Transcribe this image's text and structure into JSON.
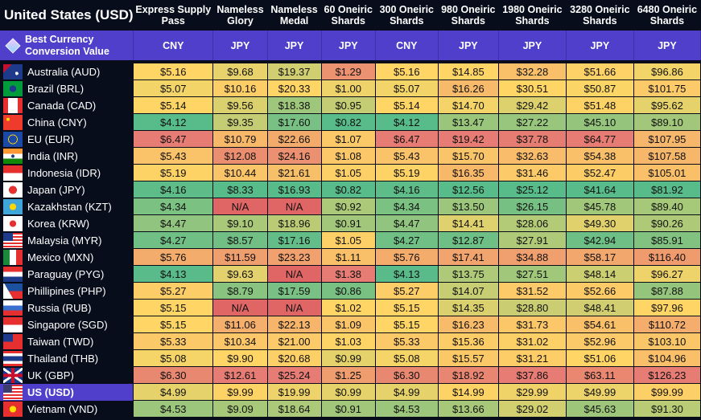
{
  "title": "United States (USD)",
  "columns": [
    "Express Supply\nPass",
    "Nameless\nGlory",
    "Nameless\nMedal",
    "60 Oneiric\nShards",
    "300 Oneiric\nShards",
    "980 Oneiric\nShards",
    "1980 Oneiric\nShards",
    "3280 Oneiric\nShards",
    "6480 Oneiric\nShards"
  ],
  "best": {
    "label": "Best Currency\nConversion Value",
    "icon": "crystal-gem-icon",
    "values": [
      "CNY",
      "JPY",
      "JPY",
      "JPY",
      "CNY",
      "JPY",
      "JPY",
      "JPY",
      "JPY"
    ]
  },
  "colors": {
    "background": "#080d1b",
    "accent": "#4f3fca",
    "scale_low": "#57bb8a",
    "scale_mid": "#ffd666",
    "scale_high": "#e67c73",
    "na": "#e06666"
  },
  "selected_row": "US (USD)",
  "rows": [
    {
      "country": "Australia (AUD)",
      "flag": "flag-australia",
      "values": [
        "$5.16",
        "$9.68",
        "$19.37",
        "$1.29",
        "$5.16",
        "$14.85",
        "$32.28",
        "$51.66",
        "$96.86"
      ]
    },
    {
      "country": "Brazil (BRL)",
      "flag": "flag-brazil",
      "values": [
        "$5.07",
        "$10.16",
        "$20.33",
        "$1.00",
        "$5.07",
        "$16.26",
        "$30.51",
        "$50.87",
        "$101.75"
      ]
    },
    {
      "country": "Canada (CAD)",
      "flag": "flag-canada",
      "values": [
        "$5.14",
        "$9.56",
        "$18.38",
        "$0.95",
        "$5.14",
        "$14.70",
        "$29.42",
        "$51.48",
        "$95.62"
      ]
    },
    {
      "country": "China (CNY)",
      "flag": "flag-china",
      "values": [
        "$4.12",
        "$9.35",
        "$17.60",
        "$0.82",
        "$4.12",
        "$13.47",
        "$27.22",
        "$45.10",
        "$89.10"
      ]
    },
    {
      "country": "EU (EUR)",
      "flag": "flag-eu",
      "values": [
        "$6.47",
        "$10.79",
        "$22.66",
        "$1.07",
        "$6.47",
        "$19.42",
        "$37.78",
        "$64.77",
        "$107.95"
      ]
    },
    {
      "country": "India (INR)",
      "flag": "flag-india",
      "values": [
        "$5.43",
        "$12.08",
        "$24.16",
        "$1.08",
        "$5.43",
        "$15.70",
        "$32.63",
        "$54.38",
        "$107.58"
      ]
    },
    {
      "country": "Indonesia (IDR)",
      "flag": "flag-indonesia",
      "values": [
        "$5.19",
        "$10.44",
        "$21.61",
        "$1.05",
        "$5.19",
        "$16.35",
        "$31.46",
        "$52.47",
        "$105.01"
      ]
    },
    {
      "country": "Japan (JPY)",
      "flag": "flag-japan",
      "values": [
        "$4.16",
        "$8.33",
        "$16.93",
        "$0.82",
        "$4.16",
        "$12.56",
        "$25.12",
        "$41.64",
        "$81.92"
      ]
    },
    {
      "country": "Kazakhstan (KZT)",
      "flag": "flag-kazakhstan",
      "values": [
        "$4.34",
        "N/A",
        "N/A",
        "$0.92",
        "$4.34",
        "$13.50",
        "$26.15",
        "$45.78",
        "$89.40"
      ]
    },
    {
      "country": "Korea (KRW)",
      "flag": "flag-korea",
      "values": [
        "$4.47",
        "$9.10",
        "$18.96",
        "$0.91",
        "$4.47",
        "$14.41",
        "$28.06",
        "$49.30",
        "$90.26"
      ]
    },
    {
      "country": "Malaysia (MYR)",
      "flag": "flag-malaysia",
      "values": [
        "$4.27",
        "$8.57",
        "$17.16",
        "$1.05",
        "$4.27",
        "$12.87",
        "$27.91",
        "$42.94",
        "$85.91"
      ]
    },
    {
      "country": "Mexico (MXN)",
      "flag": "flag-mexico",
      "values": [
        "$5.76",
        "$11.59",
        "$23.23",
        "$1.11",
        "$5.76",
        "$17.41",
        "$34.88",
        "$58.17",
        "$116.40"
      ]
    },
    {
      "country": "Paraguay (PYG)",
      "flag": "flag-paraguay",
      "values": [
        "$4.13",
        "$9.63",
        "N/A",
        "$1.38",
        "$4.13",
        "$13.75",
        "$27.51",
        "$48.14",
        "$96.27"
      ]
    },
    {
      "country": "Phillipines (PHP)",
      "flag": "flag-philippines",
      "values": [
        "$5.27",
        "$8.79",
        "$17.59",
        "$0.86",
        "$5.27",
        "$14.07",
        "$31.52",
        "$52.66",
        "$87.88"
      ]
    },
    {
      "country": "Russia (RUB)",
      "flag": "flag-russia",
      "values": [
        "$5.15",
        "N/A",
        "N/A",
        "$1.02",
        "$5.15",
        "$14.35",
        "$28.80",
        "$48.41",
        "$97.96"
      ]
    },
    {
      "country": "Singapore (SGD)",
      "flag": "flag-singapore",
      "values": [
        "$5.15",
        "$11.06",
        "$22.13",
        "$1.09",
        "$5.15",
        "$16.23",
        "$31.73",
        "$54.61",
        "$110.72"
      ]
    },
    {
      "country": "Taiwan (TWD)",
      "flag": "flag-taiwan",
      "values": [
        "$5.33",
        "$10.34",
        "$21.00",
        "$1.03",
        "$5.33",
        "$15.36",
        "$31.02",
        "$52.96",
        "$103.10"
      ]
    },
    {
      "country": "Thailand (THB)",
      "flag": "flag-thailand",
      "values": [
        "$5.08",
        "$9.90",
        "$20.68",
        "$0.99",
        "$5.08",
        "$15.57",
        "$31.21",
        "$51.06",
        "$104.96"
      ]
    },
    {
      "country": "UK (GBP)",
      "flag": "flag-uk",
      "values": [
        "$6.30",
        "$12.61",
        "$25.24",
        "$1.25",
        "$6.30",
        "$18.92",
        "$37.86",
        "$63.11",
        "$126.23"
      ]
    },
    {
      "country": "US (USD)",
      "flag": "flag-us",
      "values": [
        "$4.99",
        "$9.99",
        "$19.99",
        "$0.99",
        "$4.99",
        "$14.99",
        "$29.99",
        "$49.99",
        "$99.99"
      ]
    },
    {
      "country": "Vietnam (VND)",
      "flag": "flag-vietnam",
      "values": [
        "$4.53",
        "$9.09",
        "$18.64",
        "$0.91",
        "$4.53",
        "$13.66",
        "$29.02",
        "$45.63",
        "$91.30"
      ]
    }
  ]
}
